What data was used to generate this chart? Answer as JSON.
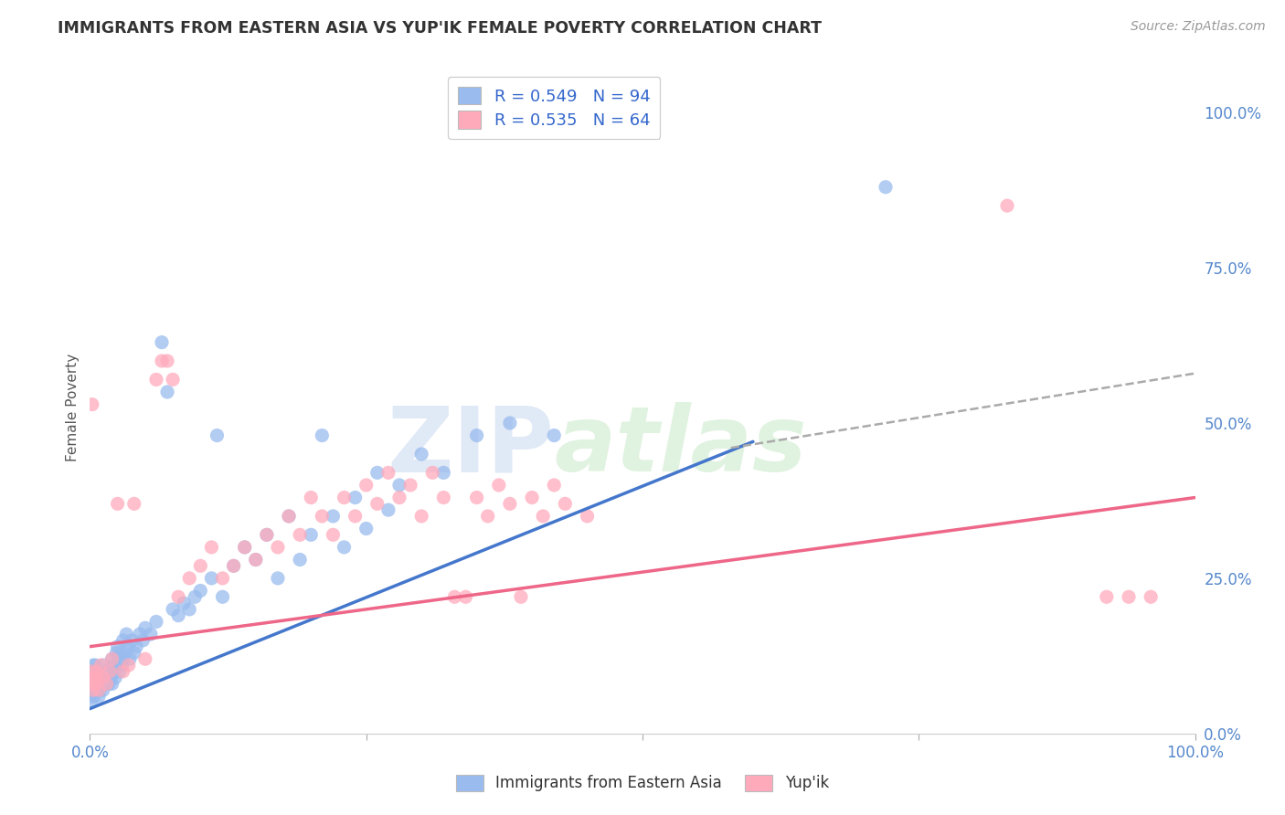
{
  "title": "IMMIGRANTS FROM EASTERN ASIA VS YUP'IK FEMALE POVERTY CORRELATION CHART",
  "source": "Source: ZipAtlas.com",
  "ylabel": "Female Poverty",
  "x_label_bottom": "Immigrants from Eastern Asia",
  "legend_label2": "Yup'ik",
  "r1": 0.549,
  "n1": 94,
  "r2": 0.535,
  "n2": 64,
  "blue_color": "#99BBEE",
  "pink_color": "#FFAABB",
  "blue_line_color": "#4477CC",
  "pink_line_color": "#EE6688",
  "blue_scatter": [
    [
      0.001,
      0.05
    ],
    [
      0.001,
      0.07
    ],
    [
      0.001,
      0.09
    ],
    [
      0.002,
      0.06
    ],
    [
      0.002,
      0.08
    ],
    [
      0.002,
      0.1
    ],
    [
      0.003,
      0.07
    ],
    [
      0.003,
      0.09
    ],
    [
      0.003,
      0.11
    ],
    [
      0.004,
      0.06
    ],
    [
      0.004,
      0.08
    ],
    [
      0.004,
      0.1
    ],
    [
      0.005,
      0.07
    ],
    [
      0.005,
      0.09
    ],
    [
      0.005,
      0.11
    ],
    [
      0.006,
      0.08
    ],
    [
      0.006,
      0.1
    ],
    [
      0.007,
      0.07
    ],
    [
      0.007,
      0.09
    ],
    [
      0.008,
      0.06
    ],
    [
      0.008,
      0.08
    ],
    [
      0.009,
      0.07
    ],
    [
      0.01,
      0.08
    ],
    [
      0.01,
      0.1
    ],
    [
      0.011,
      0.09
    ],
    [
      0.012,
      0.07
    ],
    [
      0.012,
      0.11
    ],
    [
      0.013,
      0.08
    ],
    [
      0.014,
      0.09
    ],
    [
      0.015,
      0.08
    ],
    [
      0.015,
      0.1
    ],
    [
      0.016,
      0.09
    ],
    [
      0.017,
      0.08
    ],
    [
      0.018,
      0.1
    ],
    [
      0.019,
      0.09
    ],
    [
      0.02,
      0.08
    ],
    [
      0.02,
      0.12
    ],
    [
      0.021,
      0.1
    ],
    [
      0.022,
      0.11
    ],
    [
      0.023,
      0.09
    ],
    [
      0.024,
      0.13
    ],
    [
      0.025,
      0.11
    ],
    [
      0.025,
      0.14
    ],
    [
      0.026,
      0.12
    ],
    [
      0.027,
      0.1
    ],
    [
      0.028,
      0.13
    ],
    [
      0.029,
      0.11
    ],
    [
      0.03,
      0.12
    ],
    [
      0.03,
      0.15
    ],
    [
      0.032,
      0.13
    ],
    [
      0.033,
      0.16
    ],
    [
      0.035,
      0.14
    ],
    [
      0.036,
      0.12
    ],
    [
      0.038,
      0.15
    ],
    [
      0.04,
      0.13
    ],
    [
      0.042,
      0.14
    ],
    [
      0.045,
      0.16
    ],
    [
      0.048,
      0.15
    ],
    [
      0.05,
      0.17
    ],
    [
      0.055,
      0.16
    ],
    [
      0.06,
      0.18
    ],
    [
      0.065,
      0.63
    ],
    [
      0.07,
      0.55
    ],
    [
      0.075,
      0.2
    ],
    [
      0.08,
      0.19
    ],
    [
      0.085,
      0.21
    ],
    [
      0.09,
      0.2
    ],
    [
      0.095,
      0.22
    ],
    [
      0.1,
      0.23
    ],
    [
      0.11,
      0.25
    ],
    [
      0.115,
      0.48
    ],
    [
      0.12,
      0.22
    ],
    [
      0.13,
      0.27
    ],
    [
      0.14,
      0.3
    ],
    [
      0.15,
      0.28
    ],
    [
      0.16,
      0.32
    ],
    [
      0.17,
      0.25
    ],
    [
      0.18,
      0.35
    ],
    [
      0.19,
      0.28
    ],
    [
      0.2,
      0.32
    ],
    [
      0.21,
      0.48
    ],
    [
      0.22,
      0.35
    ],
    [
      0.23,
      0.3
    ],
    [
      0.24,
      0.38
    ],
    [
      0.25,
      0.33
    ],
    [
      0.26,
      0.42
    ],
    [
      0.27,
      0.36
    ],
    [
      0.28,
      0.4
    ],
    [
      0.3,
      0.45
    ],
    [
      0.32,
      0.42
    ],
    [
      0.35,
      0.48
    ],
    [
      0.38,
      0.5
    ],
    [
      0.42,
      0.48
    ],
    [
      0.72,
      0.88
    ]
  ],
  "pink_scatter": [
    [
      0.001,
      0.1
    ],
    [
      0.002,
      0.08
    ],
    [
      0.002,
      0.53
    ],
    [
      0.003,
      0.07
    ],
    [
      0.004,
      0.09
    ],
    [
      0.005,
      0.08
    ],
    [
      0.006,
      0.1
    ],
    [
      0.007,
      0.09
    ],
    [
      0.008,
      0.07
    ],
    [
      0.01,
      0.11
    ],
    [
      0.012,
      0.09
    ],
    [
      0.015,
      0.08
    ],
    [
      0.018,
      0.1
    ],
    [
      0.02,
      0.12
    ],
    [
      0.025,
      0.37
    ],
    [
      0.03,
      0.1
    ],
    [
      0.035,
      0.11
    ],
    [
      0.04,
      0.37
    ],
    [
      0.05,
      0.12
    ],
    [
      0.06,
      0.57
    ],
    [
      0.065,
      0.6
    ],
    [
      0.07,
      0.6
    ],
    [
      0.075,
      0.57
    ],
    [
      0.08,
      0.22
    ],
    [
      0.09,
      0.25
    ],
    [
      0.1,
      0.27
    ],
    [
      0.11,
      0.3
    ],
    [
      0.12,
      0.25
    ],
    [
      0.13,
      0.27
    ],
    [
      0.14,
      0.3
    ],
    [
      0.15,
      0.28
    ],
    [
      0.16,
      0.32
    ],
    [
      0.17,
      0.3
    ],
    [
      0.18,
      0.35
    ],
    [
      0.19,
      0.32
    ],
    [
      0.2,
      0.38
    ],
    [
      0.21,
      0.35
    ],
    [
      0.22,
      0.32
    ],
    [
      0.23,
      0.38
    ],
    [
      0.24,
      0.35
    ],
    [
      0.25,
      0.4
    ],
    [
      0.26,
      0.37
    ],
    [
      0.27,
      0.42
    ],
    [
      0.28,
      0.38
    ],
    [
      0.29,
      0.4
    ],
    [
      0.3,
      0.35
    ],
    [
      0.31,
      0.42
    ],
    [
      0.32,
      0.38
    ],
    [
      0.33,
      0.22
    ],
    [
      0.34,
      0.22
    ],
    [
      0.35,
      0.38
    ],
    [
      0.36,
      0.35
    ],
    [
      0.37,
      0.4
    ],
    [
      0.38,
      0.37
    ],
    [
      0.39,
      0.22
    ],
    [
      0.4,
      0.38
    ],
    [
      0.41,
      0.35
    ],
    [
      0.42,
      0.4
    ],
    [
      0.43,
      0.37
    ],
    [
      0.45,
      0.35
    ],
    [
      0.83,
      0.85
    ],
    [
      0.92,
      0.22
    ],
    [
      0.94,
      0.22
    ],
    [
      0.96,
      0.22
    ]
  ],
  "blue_line": {
    "x0": 0.0,
    "y0": 0.04,
    "x1": 0.6,
    "y1": 0.47
  },
  "pink_line": {
    "x0": 0.0,
    "y0": 0.14,
    "x1": 1.0,
    "y1": 0.38
  },
  "dashed_line": {
    "x0": 0.58,
    "y0": 0.46,
    "x1": 1.0,
    "y1": 0.58
  },
  "xlim": [
    0.0,
    1.0
  ],
  "ylim": [
    0.0,
    1.05
  ],
  "yticks": [
    0.0,
    0.25,
    0.5,
    0.75,
    1.0
  ],
  "ytick_labels": [
    "0.0%",
    "25.0%",
    "50.0%",
    "75.0%",
    "100.0%"
  ],
  "xtick_left": "0.0%",
  "xtick_right": "100.0%",
  "watermark_zip": "ZIP",
  "watermark_atlas": "atlas",
  "background_color": "#FFFFFF",
  "grid_color": "#CCCCCC",
  "tick_color": "#5588CC",
  "title_color": "#333333",
  "source_color": "#999999"
}
